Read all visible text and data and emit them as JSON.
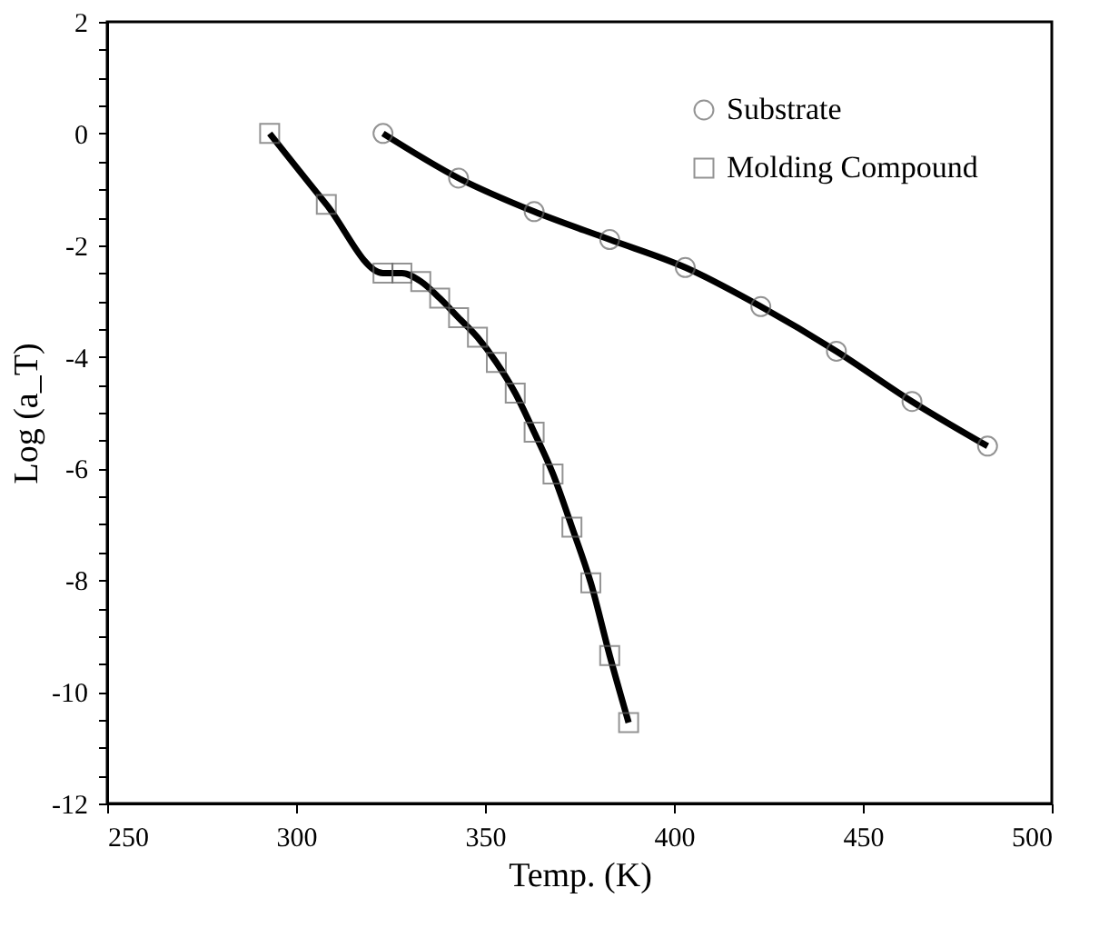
{
  "chart_data": {
    "type": "line",
    "xlabel": "Temp. (K)",
    "ylabel": "Log (a_T)",
    "series": [
      {
        "name": "Substrate",
        "color": "#000000",
        "marker": "circle",
        "x": [
          323,
          343,
          363,
          383,
          403,
          423,
          443,
          463,
          483
        ],
        "values": [
          0,
          -0.8,
          -1.4,
          -1.9,
          -2.4,
          -3.1,
          -3.9,
          -4.8,
          -5.6
        ]
      },
      {
        "name": "Molding Compound",
        "color": "#000000",
        "marker": "square",
        "x": [
          293,
          308,
          323,
          328,
          333,
          338,
          343,
          348,
          353,
          358,
          363,
          368,
          373,
          378,
          383,
          388
        ],
        "values": [
          0,
          -1.27,
          -2.5,
          -2.5,
          -2.65,
          -2.95,
          -3.3,
          -3.65,
          -4.1,
          -4.65,
          -5.35,
          -6.1,
          -7.05,
          -8.05,
          -9.35,
          -10.55
        ]
      }
    ],
    "xlim": [
      250,
      500
    ],
    "xticks": [
      250,
      300,
      350,
      400,
      450,
      500
    ],
    "ylim": [
      -12,
      2
    ],
    "yticks": [
      -12,
      {
        "value": -11.5,
        "label": null
      },
      {
        "value": -11,
        "label": null
      },
      {
        "value": -10.5,
        "label": null
      },
      -10,
      {
        "value": -9.5,
        "label": null
      },
      {
        "value": -9,
        "label": null
      },
      {
        "value": -8.5,
        "label": null
      },
      -8,
      {
        "value": -7.5,
        "label": null
      },
      {
        "value": -7,
        "label": null
      },
      {
        "value": -6.5,
        "label": null
      },
      -6,
      {
        "value": -5.5,
        "label": null
      },
      {
        "value": -5,
        "label": null
      },
      {
        "value": -4.5,
        "label": null
      },
      -4,
      {
        "value": -3.5,
        "label": null
      },
      {
        "value": -3,
        "label": null
      },
      {
        "value": -2.5,
        "label": null
      },
      -2,
      {
        "value": -1.5,
        "label": null
      },
      {
        "value": -1,
        "label": null
      },
      {
        "value": -0.5,
        "label": null
      },
      0,
      {
        "value": 0.5,
        "label": null
      },
      {
        "value": 1,
        "label": null
      },
      {
        "value": 1.5,
        "label": null
      },
      2
    ],
    "grid": false,
    "legend": "top right",
    "line_style": "solid"
  }
}
